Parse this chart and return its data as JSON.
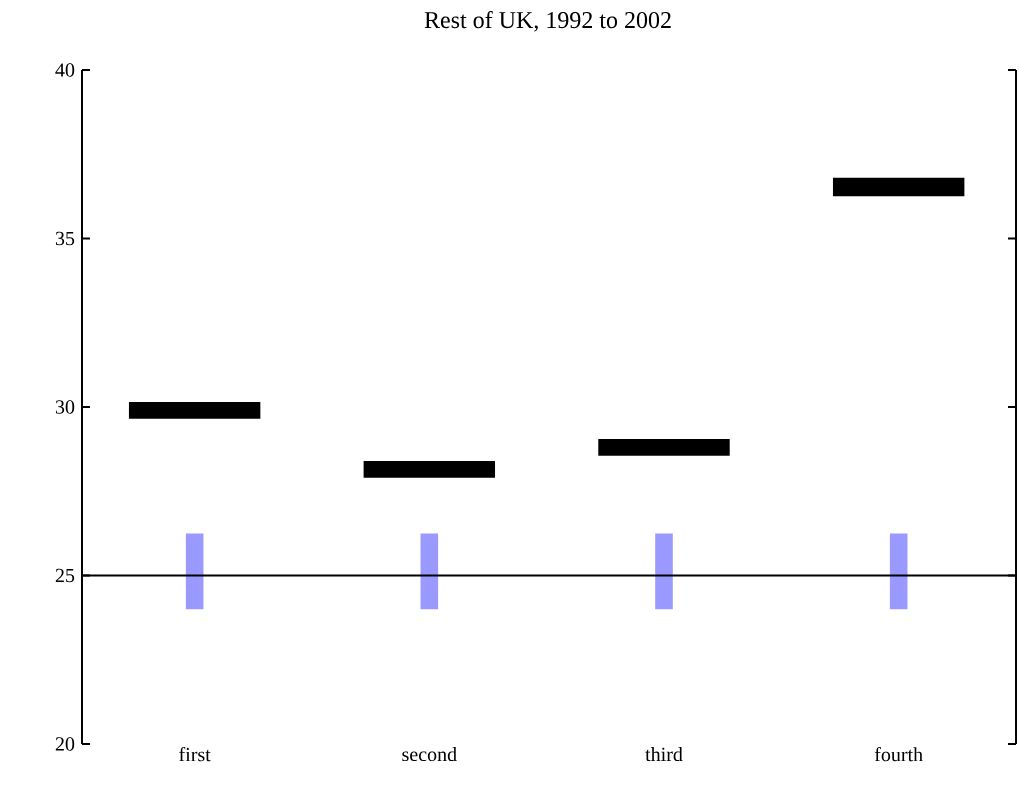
{
  "chart_data": {
    "type": "bar",
    "title": "Rest of UK, 1992 to 2002",
    "categories": [
      "first",
      "second",
      "third",
      "fourth"
    ],
    "series": [
      {
        "color": "#9999ff",
        "base": [
          24.0,
          24.0,
          24.0,
          24.0
        ],
        "values": [
          2.25,
          2.25,
          2.25,
          2.25
        ]
      },
      {
        "color": "#000000",
        "base": [
          29.65,
          27.9,
          28.55,
          36.25
        ],
        "values": [
          0.5,
          0.5,
          0.5,
          0.55
        ]
      }
    ],
    "ref_lines": [
      {
        "axis": "y",
        "value": 25,
        "color": "#000000"
      }
    ],
    "ylim": [
      20,
      40
    ],
    "yticks": [
      20,
      25,
      30,
      35,
      40
    ]
  }
}
